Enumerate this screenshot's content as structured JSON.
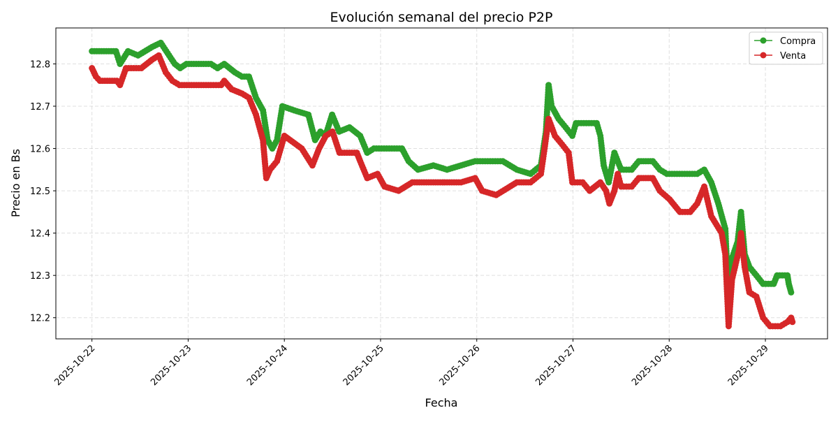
{
  "chart_data": {
    "type": "line",
    "title": "Evolución semanal del precio P2P",
    "xlabel": "Fecha",
    "ylabel": "Precio en Bs",
    "xlim": [
      "2025-10-21 15:00",
      "2025-10-29 15:30"
    ],
    "ylim": [
      12.15,
      12.885
    ],
    "grid": true,
    "legend": "top-right",
    "x_ticks": [
      "2025-10-22",
      "2025-10-23",
      "2025-10-24",
      "2025-10-25",
      "2025-10-26",
      "2025-10-27",
      "2025-10-28",
      "2025-10-29"
    ],
    "y_ticks": [
      "12.2",
      "12.3",
      "12.4",
      "12.5",
      "12.6",
      "12.7",
      "12.8"
    ],
    "series": [
      {
        "name": "Compra",
        "color": "#2ca02c",
        "points": [
          [
            "2025-10-22 00:00",
            12.83
          ],
          [
            "2025-10-22 06:00",
            12.83
          ],
          [
            "2025-10-22 07:00",
            12.8
          ],
          [
            "2025-10-22 09:00",
            12.83
          ],
          [
            "2025-10-22 11:30",
            12.82
          ],
          [
            "2025-10-22 15:00",
            12.84
          ],
          [
            "2025-10-22 17:10",
            12.85
          ],
          [
            "2025-10-22 19:15",
            12.82
          ],
          [
            "2025-10-22 20:40",
            12.8
          ],
          [
            "2025-10-22 22:00",
            12.79
          ],
          [
            "2025-10-22 23:35",
            12.8
          ],
          [
            "2025-10-23 05:40",
            12.8
          ],
          [
            "2025-10-23 07:20",
            12.79
          ],
          [
            "2025-10-23 09:00",
            12.8
          ],
          [
            "2025-10-23 11:40",
            12.78
          ],
          [
            "2025-10-23 13:25",
            12.77
          ],
          [
            "2025-10-23 15:10",
            12.77
          ],
          [
            "2025-10-23 16:55",
            12.72
          ],
          [
            "2025-10-23 18:40",
            12.69
          ],
          [
            "2025-10-23 19:50",
            12.62
          ],
          [
            "2025-10-23 21:00",
            12.6
          ],
          [
            "2025-10-23 22:10",
            12.62
          ],
          [
            "2025-10-23 23:30",
            12.7
          ],
          [
            "2025-10-24 02:30",
            12.69
          ],
          [
            "2025-10-24 06:00",
            12.68
          ],
          [
            "2025-10-24 07:40",
            12.62
          ],
          [
            "2025-10-24 09:00",
            12.64
          ],
          [
            "2025-10-24 10:15",
            12.63
          ],
          [
            "2025-10-24 11:55",
            12.68
          ],
          [
            "2025-10-24 13:40",
            12.64
          ],
          [
            "2025-10-24 16:15",
            12.65
          ],
          [
            "2025-10-24 18:55",
            12.63
          ],
          [
            "2025-10-24 20:40",
            12.59
          ],
          [
            "2025-10-24 22:20",
            12.6
          ],
          [
            "2025-10-25 05:20",
            12.6
          ],
          [
            "2025-10-25 07:00",
            12.57
          ],
          [
            "2025-10-25 09:20",
            12.55
          ],
          [
            "2025-10-25 13:10",
            12.56
          ],
          [
            "2025-10-25 16:35",
            12.55
          ],
          [
            "2025-10-25 20:05",
            12.56
          ],
          [
            "2025-10-25 23:35",
            12.57
          ],
          [
            "2025-10-26 06:30",
            12.57
          ],
          [
            "2025-10-26 10:00",
            12.55
          ],
          [
            "2025-10-26 13:25",
            12.54
          ],
          [
            "2025-10-26 16:00",
            12.56
          ],
          [
            "2025-10-26 17:15",
            12.64
          ],
          [
            "2025-10-26 17:55",
            12.75
          ],
          [
            "2025-10-26 18:40",
            12.7
          ],
          [
            "2025-10-26 20:25",
            12.67
          ],
          [
            "2025-10-26 22:10",
            12.65
          ],
          [
            "2025-10-26 23:50",
            12.63
          ],
          [
            "2025-10-27 00:45",
            12.66
          ],
          [
            "2025-10-27 05:55",
            12.66
          ],
          [
            "2025-10-27 06:50",
            12.63
          ],
          [
            "2025-10-27 07:40",
            12.56
          ],
          [
            "2025-10-27 08:55",
            12.52
          ],
          [
            "2025-10-27 10:20",
            12.59
          ],
          [
            "2025-10-27 12:00",
            12.55
          ],
          [
            "2025-10-27 14:40",
            12.55
          ],
          [
            "2025-10-27 16:25",
            12.57
          ],
          [
            "2025-10-27 19:55",
            12.57
          ],
          [
            "2025-10-27 21:40",
            12.55
          ],
          [
            "2025-10-27 23:25",
            12.54
          ],
          [
            "2025-10-28 07:00",
            12.54
          ],
          [
            "2025-10-28 08:45",
            12.55
          ],
          [
            "2025-10-28 10:30",
            12.52
          ],
          [
            "2025-10-28 12:15",
            12.47
          ],
          [
            "2025-10-28 14:00",
            12.41
          ],
          [
            "2025-10-28 14:50",
            12.24
          ],
          [
            "2025-10-28 15:40",
            12.34
          ],
          [
            "2025-10-28 17:05",
            12.38
          ],
          [
            "2025-10-28 17:55",
            12.45
          ],
          [
            "2025-10-28 18:50",
            12.35
          ],
          [
            "2025-10-28 20:00",
            12.32
          ],
          [
            "2025-10-28 21:45",
            12.3
          ],
          [
            "2025-10-28 23:25",
            12.28
          ],
          [
            "2025-10-29 02:05",
            12.28
          ],
          [
            "2025-10-29 02:55",
            12.3
          ],
          [
            "2025-10-29 05:30",
            12.3
          ],
          [
            "2025-10-29 05:50",
            12.28
          ],
          [
            "2025-10-29 06:25",
            12.26
          ]
        ]
      },
      {
        "name": "Venta",
        "color": "#d62728",
        "points": [
          [
            "2025-10-22 00:00",
            12.79
          ],
          [
            "2025-10-22 01:00",
            12.77
          ],
          [
            "2025-10-22 02:00",
            12.76
          ],
          [
            "2025-10-22 06:15",
            12.76
          ],
          [
            "2025-10-22 07:00",
            12.75
          ],
          [
            "2025-10-22 08:30",
            12.79
          ],
          [
            "2025-10-22 12:20",
            12.79
          ],
          [
            "2025-10-22 15:00",
            12.81
          ],
          [
            "2025-10-22 16:40",
            12.82
          ],
          [
            "2025-10-22 18:25",
            12.78
          ],
          [
            "2025-10-22 20:05",
            12.76
          ],
          [
            "2025-10-22 21:50",
            12.75
          ],
          [
            "2025-10-23 05:40",
            12.75
          ],
          [
            "2025-10-23 08:15",
            12.75
          ],
          [
            "2025-10-23 09:00",
            12.76
          ],
          [
            "2025-10-23 10:50",
            12.74
          ],
          [
            "2025-10-23 13:25",
            12.73
          ],
          [
            "2025-10-23 15:10",
            12.72
          ],
          [
            "2025-10-23 16:55",
            12.68
          ],
          [
            "2025-10-23 18:40",
            12.62
          ],
          [
            "2025-10-23 19:30",
            12.53
          ],
          [
            "2025-10-23 20:25",
            12.55
          ],
          [
            "2025-10-23 22:10",
            12.57
          ],
          [
            "2025-10-24 00:00",
            12.63
          ],
          [
            "2025-10-24 04:20",
            12.6
          ],
          [
            "2025-10-24 07:00",
            12.56
          ],
          [
            "2025-10-24 08:40",
            12.6
          ],
          [
            "2025-10-24 10:20",
            12.63
          ],
          [
            "2025-10-24 12:00",
            12.64
          ],
          [
            "2025-10-24 13:45",
            12.59
          ],
          [
            "2025-10-24 18:05",
            12.59
          ],
          [
            "2025-10-24 18:55",
            12.57
          ],
          [
            "2025-10-24 20:40",
            12.53
          ],
          [
            "2025-10-24 23:15",
            12.54
          ],
          [
            "2025-10-25 01:00",
            12.51
          ],
          [
            "2025-10-25 04:30",
            12.5
          ],
          [
            "2025-10-25 07:55",
            12.52
          ],
          [
            "2025-10-25 13:10",
            12.52
          ],
          [
            "2025-10-25 16:35",
            12.52
          ],
          [
            "2025-10-25 20:05",
            12.52
          ],
          [
            "2025-10-25 23:35",
            12.53
          ],
          [
            "2025-10-26 01:20",
            12.5
          ],
          [
            "2025-10-26 04:50",
            12.49
          ],
          [
            "2025-10-26 10:00",
            12.52
          ],
          [
            "2025-10-26 13:25",
            12.52
          ],
          [
            "2025-10-26 16:00",
            12.54
          ],
          [
            "2025-10-26 16:55",
            12.6
          ],
          [
            "2025-10-26 17:55",
            12.67
          ],
          [
            "2025-10-26 19:30",
            12.63
          ],
          [
            "2025-10-26 21:15",
            12.61
          ],
          [
            "2025-10-26 22:55",
            12.59
          ],
          [
            "2025-10-26 23:50",
            12.52
          ],
          [
            "2025-10-27 02:25",
            12.52
          ],
          [
            "2025-10-27 04:10",
            12.5
          ],
          [
            "2025-10-27 06:50",
            12.52
          ],
          [
            "2025-10-27 08:15",
            12.5
          ],
          [
            "2025-10-27 09:05",
            12.47
          ],
          [
            "2025-10-27 10:20",
            12.5
          ],
          [
            "2025-10-27 11:10",
            12.54
          ],
          [
            "2025-10-27 12:00",
            12.51
          ],
          [
            "2025-10-27 14:40",
            12.51
          ],
          [
            "2025-10-27 16:25",
            12.53
          ],
          [
            "2025-10-27 19:55",
            12.53
          ],
          [
            "2025-10-27 21:40",
            12.5
          ],
          [
            "2025-10-28 00:05",
            12.48
          ],
          [
            "2025-10-28 02:40",
            12.45
          ],
          [
            "2025-10-28 05:15",
            12.45
          ],
          [
            "2025-10-28 07:00",
            12.47
          ],
          [
            "2025-10-28 08:45",
            12.51
          ],
          [
            "2025-10-28 10:30",
            12.44
          ],
          [
            "2025-10-28 13:05",
            12.4
          ],
          [
            "2025-10-28 14:00",
            12.35
          ],
          [
            "2025-10-28 14:50",
            12.18
          ],
          [
            "2025-10-28 15:40",
            12.29
          ],
          [
            "2025-10-28 17:25",
            12.36
          ],
          [
            "2025-10-28 17:55",
            12.4
          ],
          [
            "2025-10-28 18:50",
            12.32
          ],
          [
            "2025-10-28 20:00",
            12.26
          ],
          [
            "2025-10-28 21:45",
            12.25
          ],
          [
            "2025-10-28 23:25",
            12.2
          ],
          [
            "2025-10-29 01:10",
            12.18
          ],
          [
            "2025-10-29 03:45",
            12.18
          ],
          [
            "2025-10-29 05:30",
            12.19
          ],
          [
            "2025-10-29 06:25",
            12.2
          ],
          [
            "2025-10-29 06:45",
            12.19
          ]
        ]
      }
    ]
  }
}
